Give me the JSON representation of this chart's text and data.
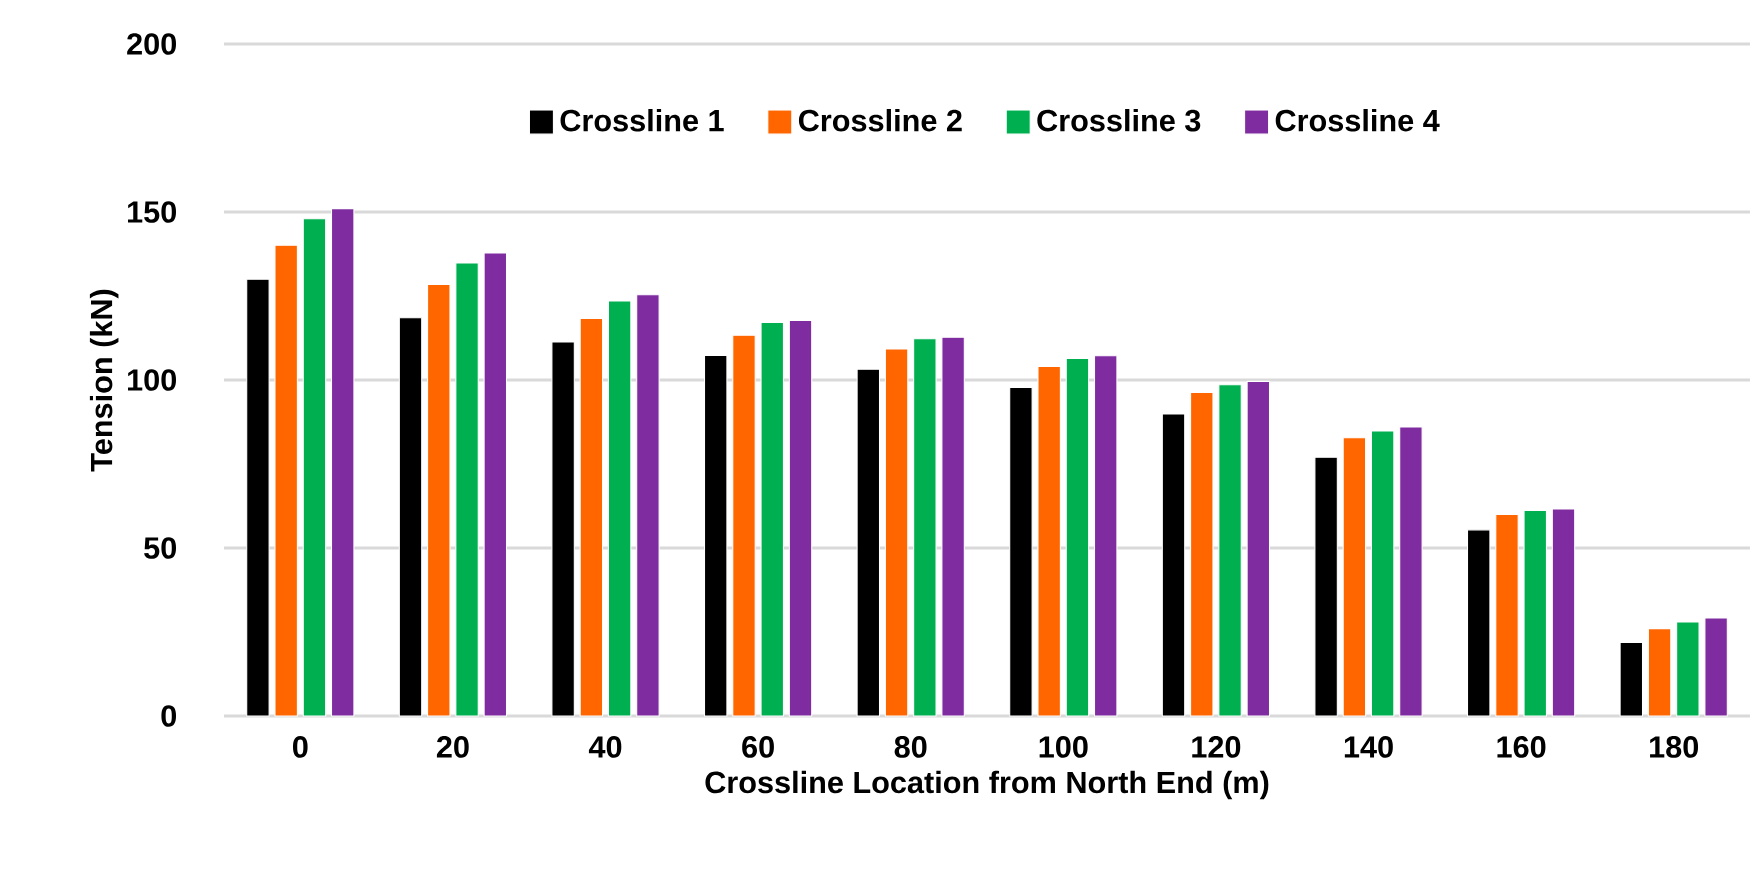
{
  "chart_data": {
    "type": "bar",
    "xlabel": "Crossline Location from North End (m)",
    "ylabel": "Tension (kN)",
    "categories": [
      "0",
      "20",
      "40",
      "60",
      "80",
      "100",
      "120",
      "140",
      "160",
      "180"
    ],
    "series": [
      {
        "name": "Crossline 1",
        "color": "#000000",
        "values": [
          130,
          118.5,
          111.3,
          107.3,
          103.2,
          97.8,
          89.9,
          77,
          55.4,
          21.9
        ]
      },
      {
        "name": "Crossline 2",
        "color": "#ff6600",
        "values": [
          140.1,
          128.4,
          118.3,
          113.3,
          109.2,
          104,
          96.3,
          82.8,
          60,
          26
        ]
      },
      {
        "name": "Crossline 3",
        "color": "#00b050",
        "values": [
          148,
          134.8,
          123.5,
          117.1,
          112.3,
          106.4,
          98.6,
          84.8,
          61.2,
          28
        ]
      },
      {
        "name": "Crossline 4",
        "color": "#7f2ca0",
        "values": [
          151,
          137.8,
          125.4,
          117.7,
          112.7,
          107.2,
          99.6,
          86,
          61.6,
          29.2
        ]
      }
    ],
    "ylim": [
      0,
      200
    ],
    "yticks": [
      0,
      50,
      100,
      150,
      200
    ],
    "grid": "y",
    "legend": "top"
  }
}
